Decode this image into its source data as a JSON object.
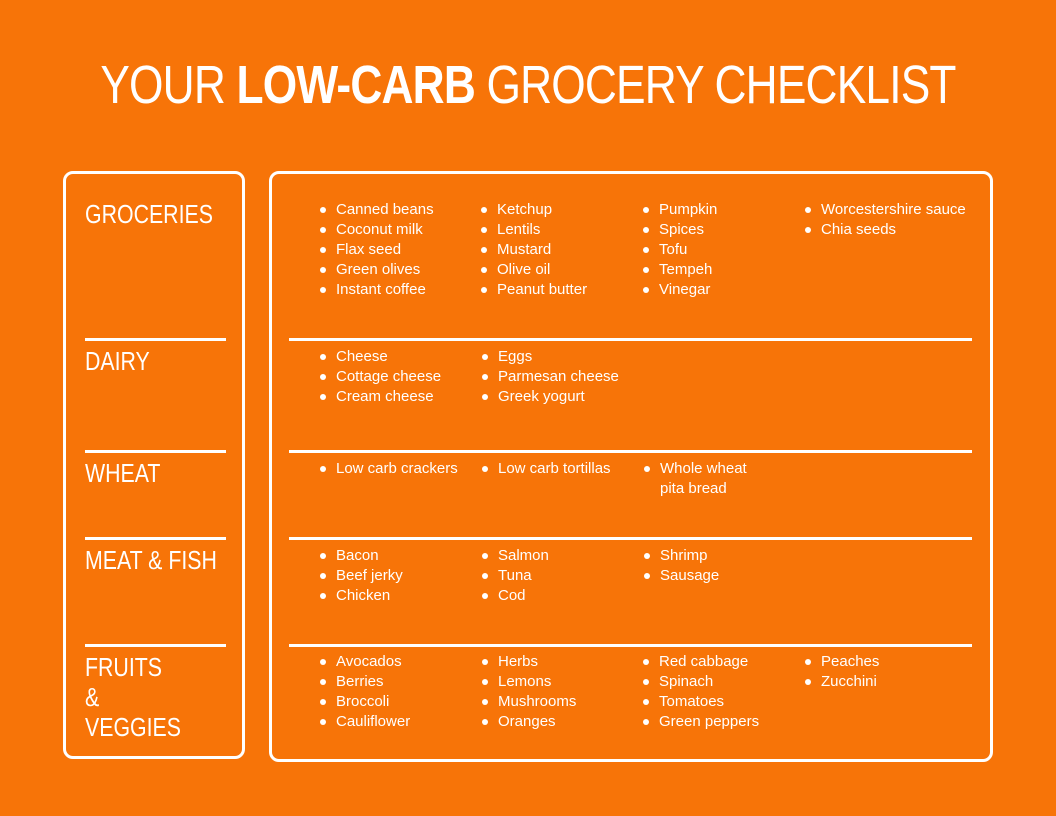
{
  "title": {
    "part1": "YOUR ",
    "part2": "LOW-CARB",
    "part3": " GROCERY CHECKLIST"
  },
  "categories": [
    {
      "label": "GROCERIES",
      "columns": [
        [
          "Canned beans",
          "Coconut milk",
          "Flax seed",
          "Green olives",
          "Instant coffee"
        ],
        [
          "Ketchup",
          "Lentils",
          "Mustard",
          "Olive oil",
          "Peanut butter"
        ],
        [
          "Pumpkin",
          "Spices",
          "Tofu",
          "Tempeh",
          "Vinegar"
        ],
        [
          "Worcestershire sauce",
          "Chia seeds"
        ]
      ]
    },
    {
      "label": "DAIRY",
      "columns": [
        [
          "Cheese",
          "Cottage cheese",
          "Cream cheese"
        ],
        [
          "Eggs",
          "Parmesan cheese",
          "Greek yogurt"
        ]
      ]
    },
    {
      "label": "WHEAT",
      "columns": [
        [
          "Low carb crackers"
        ],
        [
          "Low carb tortillas"
        ],
        [
          "Whole wheat pita bread"
        ]
      ]
    },
    {
      "label": "MEAT & FISH",
      "columns": [
        [
          "Bacon",
          "Beef jerky",
          "Chicken"
        ],
        [
          "Salmon",
          "Tuna",
          "Cod"
        ],
        [
          "Shrimp",
          "Sausage"
        ]
      ]
    },
    {
      "label": "FRUITS & VEGGIES",
      "columns": [
        [
          "Avocados",
          "Berries",
          "Broccoli",
          "Cauliflower"
        ],
        [
          "Herbs",
          "Lemons",
          "Mushrooms",
          "Oranges"
        ],
        [
          "Red cabbage",
          "Spinach",
          "Tomatoes",
          "Green peppers"
        ],
        [
          "Peaches",
          "Zucchini"
        ]
      ]
    }
  ]
}
